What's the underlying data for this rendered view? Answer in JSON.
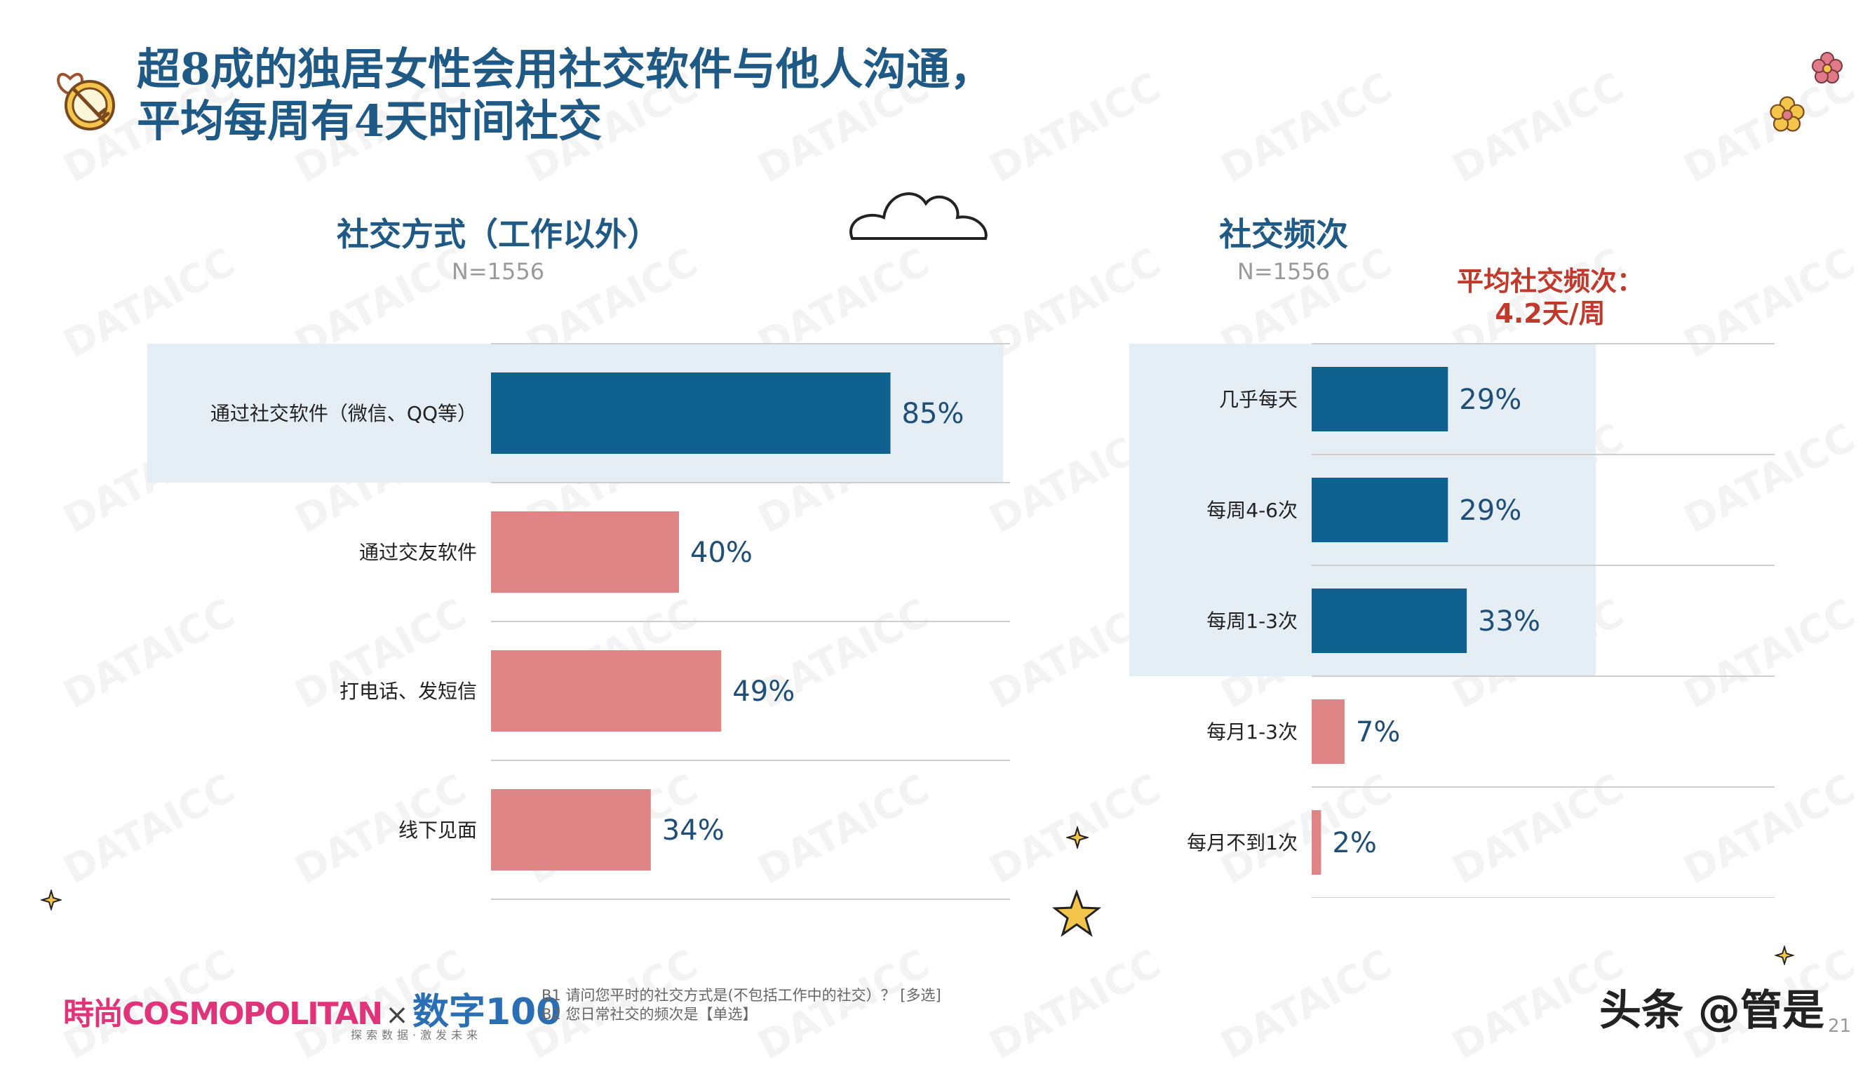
{
  "title": {
    "line1": "超8成的独居女性会用社交软件与他人沟通，",
    "line2": "平均每周有4天时间社交"
  },
  "watermark_text": "DATAICC",
  "chart_data": [
    {
      "type": "bar",
      "orientation": "horizontal",
      "title": "社交方式（工作以外）",
      "sample_size": "N=1556",
      "categories": [
        "通过社交软件（微信、QQ等）",
        "通过交友软件",
        "打电话、发短信",
        "线下见面"
      ],
      "values": [
        85,
        40,
        49,
        34
      ],
      "value_labels": [
        "85%",
        "40%",
        "49%",
        "34%"
      ],
      "unit": "%",
      "highlight_index": 0,
      "colors": {
        "highlight": "#0f628f",
        "normal": "#e08585",
        "highlight_band": "#e6eef5",
        "label_text": "#1f4e79"
      }
    },
    {
      "type": "bar",
      "orientation": "horizontal",
      "title": "社交频次",
      "sample_size": "N=1556",
      "annotation": {
        "line1": "平均社交频次：",
        "line2": "4.2天/周"
      },
      "categories": [
        "几乎每天",
        "每周4-6次",
        "每周1-3次",
        "每月1-3次",
        "每月不到1次"
      ],
      "values": [
        29,
        29,
        33,
        7,
        2
      ],
      "value_labels": [
        "29%",
        "29%",
        "33%",
        "7%",
        "2%"
      ],
      "unit": "%",
      "highlight_indices": [
        0,
        1,
        2
      ],
      "colors": {
        "highlight": "#0f628f",
        "normal": "#e08585",
        "highlight_band": "#e6eef5",
        "label_text": "#1f4e79"
      }
    }
  ],
  "footnote": {
    "line1": "B1 请问您平时的社交方式是(不包括工作中的社交）？ [多选]",
    "line2": "B2 您日常社交的频次是【单选】"
  },
  "branding": {
    "brand1": "時尚COSMOPOLITAN",
    "separator": "×",
    "brand2": "数字100",
    "brand2_sub": "探索数据·激发未来",
    "signature": "头条 @管是",
    "page_number": "21"
  }
}
